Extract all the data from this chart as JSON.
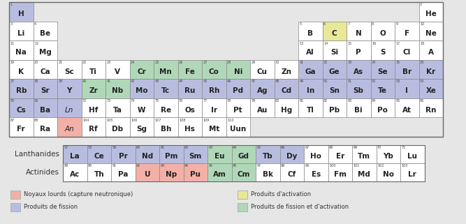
{
  "background_color": "#e6e6e6",
  "colors": {
    "fission": "#b8bde0",
    "heavy_nuclei": "#f2b0a8",
    "activation": "#e8e898",
    "fission_activation": "#b0d8b8",
    "default": "#ffffff"
  },
  "legend": {
    "heavy_nuclei_label": "Noyaux lourds (capture neutronique)",
    "fission_label": "Produits de fission",
    "activation_label": "Produits d'activation",
    "fission_activation_label": "Produits de fission et d'activation"
  },
  "elements": [
    {
      "symbol": "H",
      "num": "1",
      "col": 0,
      "row": 0,
      "color": "fission"
    },
    {
      "symbol": "He",
      "num": "2",
      "col": 17,
      "row": 0,
      "color": "default"
    },
    {
      "symbol": "Li",
      "num": "3",
      "col": 0,
      "row": 1,
      "color": "default"
    },
    {
      "symbol": "Be",
      "num": "4",
      "col": 1,
      "row": 1,
      "color": "default"
    },
    {
      "symbol": "B",
      "num": "5",
      "col": 12,
      "row": 1,
      "color": "default"
    },
    {
      "symbol": "C",
      "num": "6",
      "col": 13,
      "row": 1,
      "color": "activation"
    },
    {
      "symbol": "N",
      "num": "7",
      "col": 14,
      "row": 1,
      "color": "default"
    },
    {
      "symbol": "O",
      "num": "8",
      "col": 15,
      "row": 1,
      "color": "default"
    },
    {
      "symbol": "F",
      "num": "9",
      "col": 16,
      "row": 1,
      "color": "default"
    },
    {
      "symbol": "Ne",
      "num": "10",
      "col": 17,
      "row": 1,
      "color": "default"
    },
    {
      "symbol": "Na",
      "num": "11",
      "col": 0,
      "row": 2,
      "color": "default"
    },
    {
      "symbol": "Mg",
      "num": "12",
      "col": 1,
      "row": 2,
      "color": "default"
    },
    {
      "symbol": "Al",
      "num": "13",
      "col": 12,
      "row": 2,
      "color": "default"
    },
    {
      "symbol": "Si",
      "num": "14",
      "col": 13,
      "row": 2,
      "color": "default"
    },
    {
      "symbol": "P",
      "num": "15",
      "col": 14,
      "row": 2,
      "color": "default"
    },
    {
      "symbol": "S",
      "num": "16",
      "col": 15,
      "row": 2,
      "color": "default"
    },
    {
      "symbol": "Cl",
      "num": "17",
      "col": 16,
      "row": 2,
      "color": "default"
    },
    {
      "symbol": "A",
      "num": "18",
      "col": 17,
      "row": 2,
      "color": "default"
    },
    {
      "symbol": "K",
      "num": "19",
      "col": 0,
      "row": 3,
      "color": "default"
    },
    {
      "symbol": "Ca",
      "num": "20",
      "col": 1,
      "row": 3,
      "color": "default"
    },
    {
      "symbol": "Sc",
      "num": "21",
      "col": 2,
      "row": 3,
      "color": "default"
    },
    {
      "symbol": "Ti",
      "num": "22",
      "col": 3,
      "row": 3,
      "color": "default"
    },
    {
      "symbol": "V",
      "num": "23",
      "col": 4,
      "row": 3,
      "color": "default"
    },
    {
      "symbol": "Cr",
      "num": "24",
      "col": 5,
      "row": 3,
      "color": "fission_activation"
    },
    {
      "symbol": "Mn",
      "num": "25",
      "col": 6,
      "row": 3,
      "color": "fission_activation"
    },
    {
      "symbol": "Fe",
      "num": "26",
      "col": 7,
      "row": 3,
      "color": "fission_activation"
    },
    {
      "symbol": "Co",
      "num": "27",
      "col": 8,
      "row": 3,
      "color": "fission_activation"
    },
    {
      "symbol": "Ni",
      "num": "28",
      "col": 9,
      "row": 3,
      "color": "fission_activation"
    },
    {
      "symbol": "Cu",
      "num": "29",
      "col": 10,
      "row": 3,
      "color": "default"
    },
    {
      "symbol": "Zn",
      "num": "30",
      "col": 11,
      "row": 3,
      "color": "default"
    },
    {
      "symbol": "Ga",
      "num": "31",
      "col": 12,
      "row": 3,
      "color": "fission"
    },
    {
      "symbol": "Ge",
      "num": "32",
      "col": 13,
      "row": 3,
      "color": "fission"
    },
    {
      "symbol": "As",
      "num": "33",
      "col": 14,
      "row": 3,
      "color": "fission"
    },
    {
      "symbol": "Se",
      "num": "34",
      "col": 15,
      "row": 3,
      "color": "fission"
    },
    {
      "symbol": "Br",
      "num": "35",
      "col": 16,
      "row": 3,
      "color": "fission"
    },
    {
      "symbol": "Kr",
      "num": "36",
      "col": 17,
      "row": 3,
      "color": "fission"
    },
    {
      "symbol": "Rb",
      "num": "37",
      "col": 0,
      "row": 4,
      "color": "fission"
    },
    {
      "symbol": "Sr",
      "num": "38",
      "col": 1,
      "row": 4,
      "color": "fission"
    },
    {
      "symbol": "Y",
      "num": "39",
      "col": 2,
      "row": 4,
      "color": "fission"
    },
    {
      "symbol": "Zr",
      "num": "40",
      "col": 3,
      "row": 4,
      "color": "fission_activation"
    },
    {
      "symbol": "Nb",
      "num": "41",
      "col": 4,
      "row": 4,
      "color": "fission_activation"
    },
    {
      "symbol": "Mo",
      "num": "42",
      "col": 5,
      "row": 4,
      "color": "fission"
    },
    {
      "symbol": "Tc",
      "num": "43",
      "col": 6,
      "row": 4,
      "color": "fission"
    },
    {
      "symbol": "Ru",
      "num": "44",
      "col": 7,
      "row": 4,
      "color": "fission"
    },
    {
      "symbol": "Rh",
      "num": "45",
      "col": 8,
      "row": 4,
      "color": "fission"
    },
    {
      "symbol": "Pd",
      "num": "46",
      "col": 9,
      "row": 4,
      "color": "fission"
    },
    {
      "symbol": "Ag",
      "num": "47",
      "col": 10,
      "row": 4,
      "color": "fission"
    },
    {
      "symbol": "Cd",
      "num": "48",
      "col": 11,
      "row": 4,
      "color": "fission"
    },
    {
      "symbol": "In",
      "num": "49",
      "col": 12,
      "row": 4,
      "color": "fission"
    },
    {
      "symbol": "Sn",
      "num": "50",
      "col": 13,
      "row": 4,
      "color": "fission"
    },
    {
      "symbol": "Sb",
      "num": "51",
      "col": 14,
      "row": 4,
      "color": "fission"
    },
    {
      "symbol": "Te",
      "num": "52",
      "col": 15,
      "row": 4,
      "color": "fission"
    },
    {
      "symbol": "I",
      "num": "53",
      "col": 16,
      "row": 4,
      "color": "fission"
    },
    {
      "symbol": "Xe",
      "num": "54",
      "col": 17,
      "row": 4,
      "color": "fission"
    },
    {
      "symbol": "Cs",
      "num": "55",
      "col": 0,
      "row": 5,
      "color": "fission"
    },
    {
      "symbol": "Ba",
      "num": "56",
      "col": 1,
      "row": 5,
      "color": "fission"
    },
    {
      "symbol": "Ln",
      "num": "",
      "col": 2,
      "row": 5,
      "color": "fission",
      "italic": true
    },
    {
      "symbol": "Hf",
      "num": "72",
      "col": 3,
      "row": 5,
      "color": "default"
    },
    {
      "symbol": "Ta",
      "num": "73",
      "col": 4,
      "row": 5,
      "color": "default"
    },
    {
      "symbol": "W",
      "num": "74",
      "col": 5,
      "row": 5,
      "color": "default"
    },
    {
      "symbol": "Re",
      "num": "75",
      "col": 6,
      "row": 5,
      "color": "default"
    },
    {
      "symbol": "Os",
      "num": "76",
      "col": 7,
      "row": 5,
      "color": "default"
    },
    {
      "symbol": "Ir",
      "num": "77",
      "col": 8,
      "row": 5,
      "color": "default"
    },
    {
      "symbol": "Pt",
      "num": "78",
      "col": 9,
      "row": 5,
      "color": "default"
    },
    {
      "symbol": "Au",
      "num": "79",
      "col": 10,
      "row": 5,
      "color": "default"
    },
    {
      "symbol": "Hg",
      "num": "80",
      "col": 11,
      "row": 5,
      "color": "default"
    },
    {
      "symbol": "Tl",
      "num": "81",
      "col": 12,
      "row": 5,
      "color": "default"
    },
    {
      "symbol": "Pb",
      "num": "82",
      "col": 13,
      "row": 5,
      "color": "default"
    },
    {
      "symbol": "Bi",
      "num": "83",
      "col": 14,
      "row": 5,
      "color": "default"
    },
    {
      "symbol": "Po",
      "num": "84",
      "col": 15,
      "row": 5,
      "color": "default"
    },
    {
      "symbol": "At",
      "num": "85",
      "col": 16,
      "row": 5,
      "color": "default"
    },
    {
      "symbol": "Rn",
      "num": "86",
      "col": 17,
      "row": 5,
      "color": "default"
    },
    {
      "symbol": "Fr",
      "num": "87",
      "col": 0,
      "row": 6,
      "color": "default"
    },
    {
      "symbol": "Ra",
      "num": "88",
      "col": 1,
      "row": 6,
      "color": "default"
    },
    {
      "symbol": "An",
      "num": "",
      "col": 2,
      "row": 6,
      "color": "heavy_nuclei",
      "italic": true
    },
    {
      "symbol": "Rf",
      "num": "104",
      "col": 3,
      "row": 6,
      "color": "default"
    },
    {
      "symbol": "Db",
      "num": "105",
      "col": 4,
      "row": 6,
      "color": "default"
    },
    {
      "symbol": "Sg",
      "num": "106",
      "col": 5,
      "row": 6,
      "color": "default"
    },
    {
      "symbol": "Bh",
      "num": "107",
      "col": 6,
      "row": 6,
      "color": "default"
    },
    {
      "symbol": "Hs",
      "num": "108",
      "col": 7,
      "row": 6,
      "color": "default"
    },
    {
      "symbol": "Mt",
      "num": "109",
      "col": 8,
      "row": 6,
      "color": "default"
    },
    {
      "symbol": "Uun",
      "num": "110",
      "col": 9,
      "row": 6,
      "color": "default"
    },
    {
      "symbol": "La",
      "num": "57",
      "col": 0,
      "row": 8,
      "color": "fission"
    },
    {
      "symbol": "Ce",
      "num": "58",
      "col": 1,
      "row": 8,
      "color": "fission"
    },
    {
      "symbol": "Pr",
      "num": "59",
      "col": 2,
      "row": 8,
      "color": "fission"
    },
    {
      "symbol": "Nd",
      "num": "60",
      "col": 3,
      "row": 8,
      "color": "fission"
    },
    {
      "symbol": "Pm",
      "num": "61",
      "col": 4,
      "row": 8,
      "color": "fission"
    },
    {
      "symbol": "Sm",
      "num": "62",
      "col": 5,
      "row": 8,
      "color": "fission"
    },
    {
      "symbol": "Eu",
      "num": "63",
      "col": 6,
      "row": 8,
      "color": "fission_activation"
    },
    {
      "symbol": "Gd",
      "num": "64",
      "col": 7,
      "row": 8,
      "color": "fission_activation"
    },
    {
      "symbol": "Tb",
      "num": "65",
      "col": 8,
      "row": 8,
      "color": "fission"
    },
    {
      "symbol": "Dy",
      "num": "66",
      "col": 9,
      "row": 8,
      "color": "fission"
    },
    {
      "symbol": "Ho",
      "num": "67",
      "col": 10,
      "row": 8,
      "color": "default"
    },
    {
      "symbol": "Er",
      "num": "68",
      "col": 11,
      "row": 8,
      "color": "default"
    },
    {
      "symbol": "Tm",
      "num": "69",
      "col": 12,
      "row": 8,
      "color": "default"
    },
    {
      "symbol": "Yb",
      "num": "70",
      "col": 13,
      "row": 8,
      "color": "default"
    },
    {
      "symbol": "Lu",
      "num": "71",
      "col": 14,
      "row": 8,
      "color": "default"
    },
    {
      "symbol": "Ac",
      "num": "89",
      "col": 0,
      "row": 9,
      "color": "default"
    },
    {
      "symbol": "Th",
      "num": "90",
      "col": 1,
      "row": 9,
      "color": "default"
    },
    {
      "symbol": "Pa",
      "num": "91",
      "col": 2,
      "row": 9,
      "color": "default"
    },
    {
      "symbol": "U",
      "num": "92",
      "col": 3,
      "row": 9,
      "color": "heavy_nuclei"
    },
    {
      "symbol": "Np",
      "num": "93",
      "col": 4,
      "row": 9,
      "color": "heavy_nuclei"
    },
    {
      "symbol": "Pu",
      "num": "94",
      "col": 5,
      "row": 9,
      "color": "heavy_nuclei"
    },
    {
      "symbol": "Am",
      "num": "95",
      "col": 6,
      "row": 9,
      "color": "fission_activation"
    },
    {
      "symbol": "Cm",
      "num": "96",
      "col": 7,
      "row": 9,
      "color": "fission_activation"
    },
    {
      "symbol": "Bk",
      "num": "97",
      "col": 8,
      "row": 9,
      "color": "default"
    },
    {
      "symbol": "Cf",
      "num": "98",
      "col": 9,
      "row": 9,
      "color": "default"
    },
    {
      "symbol": "Es",
      "num": "99",
      "col": 10,
      "row": 9,
      "color": "default"
    },
    {
      "symbol": "Fm",
      "num": "100",
      "col": 11,
      "row": 9,
      "color": "default"
    },
    {
      "symbol": "Md",
      "num": "101",
      "col": 12,
      "row": 9,
      "color": "default"
    },
    {
      "symbol": "No",
      "num": "102",
      "col": 13,
      "row": 9,
      "color": "default"
    },
    {
      "symbol": "Lr",
      "num": "103",
      "col": 14,
      "row": 9,
      "color": "default"
    }
  ]
}
